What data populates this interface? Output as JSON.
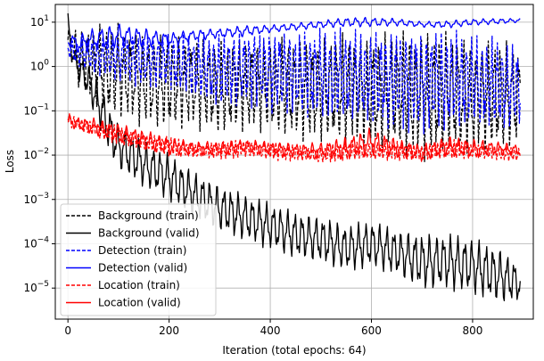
{
  "chart_data": {
    "type": "line",
    "title": "",
    "xlabel": "Iteration (total epochs: 64)",
    "ylabel": "Loss",
    "xlim": [
      -25,
      920
    ],
    "ylim_log10": [
      -5.7,
      1.4
    ],
    "yscale": "log",
    "grid": true,
    "legend_position": "lower-left",
    "x_ticks": [
      0,
      200,
      400,
      600,
      800
    ],
    "x_tick_labels": [
      "0",
      "200",
      "400",
      "600",
      "800"
    ],
    "y_ticks_log10": [
      1,
      0,
      -1,
      -2,
      -3,
      -4,
      -5
    ],
    "y_tick_labels": [
      {
        "base": "10",
        "exp": "1"
      },
      {
        "base": "10",
        "exp": "0"
      },
      {
        "base": "10",
        "exp": "−1"
      },
      {
        "base": "10",
        "exp": "−2"
      },
      {
        "base": "10",
        "exp": "−3"
      },
      {
        "base": "10",
        "exp": "−4"
      },
      {
        "base": "10",
        "exp": "−5"
      }
    ],
    "series": [
      {
        "name": "Background (train)",
        "color": "#000000",
        "dash": "dashed",
        "x": [
          0,
          20,
          40,
          60,
          80,
          100,
          150,
          200,
          250,
          300,
          350,
          400,
          450,
          500,
          550,
          600,
          650,
          700,
          750,
          800,
          850,
          895
        ],
        "y_log10": [
          0.6,
          0.2,
          0.1,
          0.0,
          -0.1,
          -0.1,
          -0.3,
          -0.4,
          -0.35,
          -0.5,
          -0.4,
          -0.45,
          -0.5,
          -0.55,
          -0.5,
          -0.6,
          -0.55,
          -0.65,
          -0.6,
          -0.7,
          -0.65,
          -0.7
        ],
        "amp": [
          0.3,
          0.6,
          0.8,
          0.9,
          1.0,
          1.0,
          1.0,
          1.0,
          1.0,
          1.0,
          1.0,
          1.0,
          1.1,
          1.1,
          1.2,
          1.2,
          1.3,
          1.4,
          1.3,
          1.2,
          1.2,
          1.1
        ],
        "period": 12
      },
      {
        "name": "Background (valid)",
        "color": "#000000",
        "dash": "solid",
        "x": [
          0,
          5,
          10,
          20,
          40,
          60,
          80,
          100,
          150,
          200,
          250,
          300,
          350,
          400,
          450,
          500,
          550,
          600,
          650,
          700,
          750,
          800,
          850,
          895
        ],
        "y_log10": [
          1.1,
          0.5,
          0.2,
          0.0,
          -0.3,
          -0.8,
          -1.4,
          -1.8,
          -2.2,
          -2.5,
          -2.9,
          -3.2,
          -3.4,
          -3.6,
          -3.8,
          -3.9,
          -4.1,
          -4.0,
          -4.2,
          -4.4,
          -4.4,
          -4.5,
          -4.7,
          -4.9
        ],
        "amp": [
          0.1,
          0.2,
          0.2,
          0.3,
          0.4,
          0.5,
          0.5,
          0.5,
          0.5,
          0.5,
          0.5,
          0.5,
          0.5,
          0.5,
          0.5,
          0.5,
          0.5,
          0.5,
          0.5,
          0.6,
          0.6,
          0.6,
          0.6,
          0.4
        ],
        "period": 14
      },
      {
        "name": "Detection (train)",
        "color": "#0000ff",
        "dash": "dashed",
        "x": [
          0,
          20,
          50,
          100,
          150,
          200,
          250,
          300,
          350,
          400,
          450,
          500,
          550,
          600,
          650,
          700,
          750,
          800,
          850,
          895
        ],
        "y_log10": [
          0.4,
          0.3,
          0.25,
          0.2,
          0.15,
          0.1,
          0.0,
          -0.1,
          -0.05,
          -0.1,
          -0.15,
          -0.2,
          -0.2,
          -0.25,
          -0.3,
          -0.35,
          -0.3,
          -0.35,
          -0.4,
          -0.5
        ],
        "amp": [
          0.2,
          0.3,
          0.4,
          0.5,
          0.6,
          0.6,
          0.7,
          0.8,
          0.8,
          0.9,
          0.9,
          1.0,
          1.0,
          1.0,
          1.1,
          1.1,
          1.1,
          1.0,
          1.0,
          0.9
        ],
        "period": 10
      },
      {
        "name": "Detection (valid)",
        "color": "#0000ff",
        "dash": "solid",
        "x": [
          0,
          20,
          50,
          100,
          150,
          200,
          250,
          300,
          350,
          400,
          450,
          500,
          550,
          600,
          650,
          700,
          750,
          800,
          850,
          895
        ],
        "y_log10": [
          0.6,
          0.5,
          0.6,
          0.7,
          0.65,
          0.6,
          0.7,
          0.75,
          0.8,
          0.85,
          0.9,
          0.95,
          1.0,
          1.0,
          1.0,
          0.95,
          0.95,
          1.0,
          1.02,
          1.04
        ],
        "amp": [
          0.15,
          0.2,
          0.25,
          0.25,
          0.2,
          0.15,
          0.12,
          0.1,
          0.12,
          0.08,
          0.08,
          0.08,
          0.1,
          0.1,
          0.08,
          0.06,
          0.08,
          0.07,
          0.06,
          0.04
        ],
        "period": 18
      },
      {
        "name": "Location (train)",
        "color": "#ff0000",
        "dash": "dashed",
        "x": [
          0,
          20,
          50,
          100,
          150,
          200,
          250,
          300,
          350,
          400,
          450,
          500,
          550,
          600,
          650,
          700,
          750,
          800,
          850,
          895
        ],
        "y_log10": [
          -1.2,
          -1.3,
          -1.4,
          -1.55,
          -1.7,
          -1.8,
          -1.9,
          -1.9,
          -1.85,
          -1.9,
          -1.95,
          -2.0,
          -1.9,
          -1.9,
          -1.9,
          -1.95,
          -1.85,
          -1.9,
          -1.95,
          -2.0
        ],
        "amp": [
          0.15,
          0.15,
          0.18,
          0.2,
          0.2,
          0.2,
          0.18,
          0.18,
          0.2,
          0.2,
          0.18,
          0.18,
          0.2,
          0.22,
          0.2,
          0.2,
          0.2,
          0.2,
          0.15,
          0.15
        ],
        "period": 8
      },
      {
        "name": "Location (valid)",
        "color": "#ff0000",
        "dash": "solid",
        "x": [
          0,
          20,
          50,
          100,
          150,
          200,
          250,
          300,
          350,
          400,
          450,
          500,
          550,
          600,
          650,
          700,
          750,
          800,
          850,
          895
        ],
        "y_log10": [
          -1.2,
          -1.3,
          -1.35,
          -1.5,
          -1.65,
          -1.8,
          -1.85,
          -1.85,
          -1.8,
          -1.85,
          -1.9,
          -1.9,
          -1.85,
          -1.7,
          -1.85,
          -1.95,
          -1.8,
          -1.85,
          -1.85,
          -1.9
        ],
        "amp": [
          0.12,
          0.15,
          0.18,
          0.2,
          0.2,
          0.2,
          0.15,
          0.15,
          0.15,
          0.15,
          0.15,
          0.18,
          0.25,
          0.3,
          0.2,
          0.18,
          0.22,
          0.2,
          0.15,
          0.12
        ],
        "period": 16
      }
    ]
  }
}
